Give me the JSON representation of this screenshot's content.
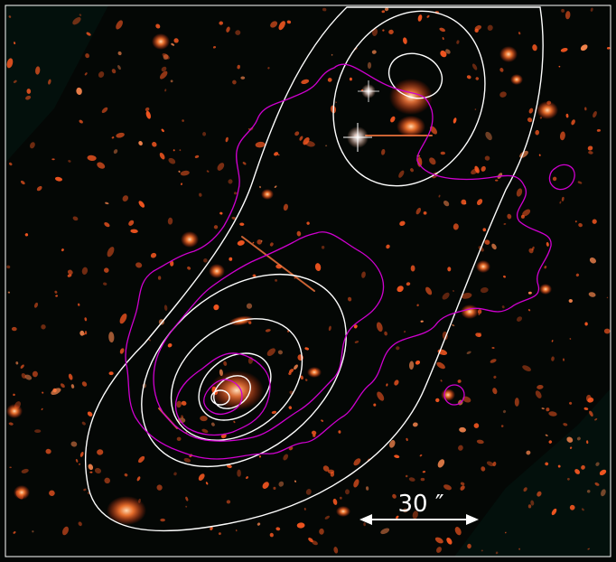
{
  "image": {
    "kind": "astronomical composite image of a galaxy cluster field with contour overlays",
    "background_color": "#040705",
    "field_tint": "#0b0b06",
    "outer_region_tint": "#03100c",
    "galaxy_color": "#ff5a22",
    "bright_galaxy_color": "#ff8a50",
    "star_color": "#ffffff",
    "frame_color": "#ffffff"
  },
  "contours": {
    "white": {
      "color": "#ffffff",
      "count": 8
    },
    "magenta": {
      "color": "#d000d0",
      "count": 6
    }
  },
  "scale_bar": {
    "label": "30 ″",
    "color": "#ffffff"
  }
}
